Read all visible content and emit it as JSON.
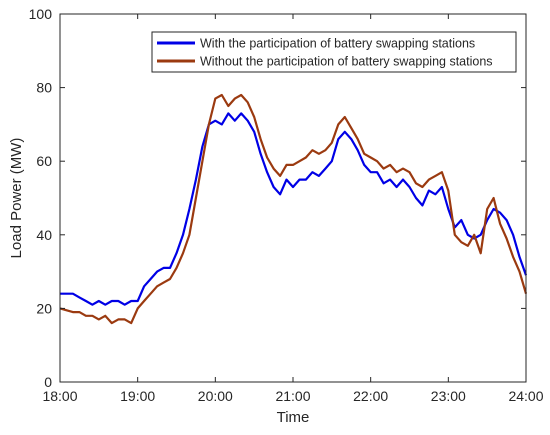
{
  "chart_data": {
    "type": "line",
    "title": "",
    "xlabel": "Time",
    "ylabel": "Load Power (MW)",
    "x_ticks": [
      "18:00",
      "19:00",
      "20:00",
      "21:00",
      "22:00",
      "23:00",
      "24:00"
    ],
    "y_ticks": [
      "0",
      "20",
      "40",
      "60",
      "80",
      "100"
    ],
    "xlim": [
      "18:00",
      "24:00"
    ],
    "ylim": [
      0,
      100
    ],
    "grid": false,
    "legend_position": "top-right",
    "series": [
      {
        "name": "With the participation of battery swapping stations",
        "color": "#0000e6",
        "points": [
          [
            "18:00",
            24
          ],
          [
            "18:10",
            24
          ],
          [
            "18:15",
            23
          ],
          [
            "18:20",
            22
          ],
          [
            "18:25",
            21
          ],
          [
            "18:30",
            22
          ],
          [
            "18:35",
            21
          ],
          [
            "18:40",
            22
          ],
          [
            "18:45",
            22
          ],
          [
            "18:50",
            21
          ],
          [
            "18:55",
            22
          ],
          [
            "19:00",
            22
          ],
          [
            "19:05",
            26
          ],
          [
            "19:10",
            28
          ],
          [
            "19:15",
            30
          ],
          [
            "19:20",
            31
          ],
          [
            "19:25",
            31
          ],
          [
            "19:30",
            35
          ],
          [
            "19:35",
            40
          ],
          [
            "19:40",
            47
          ],
          [
            "19:45",
            55
          ],
          [
            "19:50",
            64
          ],
          [
            "19:55",
            70
          ],
          [
            "20:00",
            71
          ],
          [
            "20:05",
            70
          ],
          [
            "20:10",
            73
          ],
          [
            "20:15",
            71
          ],
          [
            "20:20",
            73
          ],
          [
            "20:25",
            71
          ],
          [
            "20:30",
            68
          ],
          [
            "20:35",
            62
          ],
          [
            "20:40",
            57
          ],
          [
            "20:45",
            53
          ],
          [
            "20:50",
            51
          ],
          [
            "20:55",
            55
          ],
          [
            "21:00",
            53
          ],
          [
            "21:05",
            55
          ],
          [
            "21:10",
            55
          ],
          [
            "21:15",
            57
          ],
          [
            "21:20",
            56
          ],
          [
            "21:25",
            58
          ],
          [
            "21:30",
            60
          ],
          [
            "21:35",
            66
          ],
          [
            "21:40",
            68
          ],
          [
            "21:45",
            66
          ],
          [
            "21:50",
            63
          ],
          [
            "21:55",
            59
          ],
          [
            "22:00",
            57
          ],
          [
            "22:05",
            57
          ],
          [
            "22:10",
            54
          ],
          [
            "22:15",
            55
          ],
          [
            "22:20",
            53
          ],
          [
            "22:25",
            55
          ],
          [
            "22:30",
            53
          ],
          [
            "22:35",
            50
          ],
          [
            "22:40",
            48
          ],
          [
            "22:45",
            52
          ],
          [
            "22:50",
            51
          ],
          [
            "22:55",
            53
          ],
          [
            "23:00",
            47
          ],
          [
            "23:05",
            42
          ],
          [
            "23:10",
            44
          ],
          [
            "23:15",
            40
          ],
          [
            "23:20",
            39
          ],
          [
            "23:25",
            40
          ],
          [
            "23:30",
            44
          ],
          [
            "23:35",
            47
          ],
          [
            "23:40",
            46
          ],
          [
            "23:45",
            44
          ],
          [
            "23:50",
            40
          ],
          [
            "23:55",
            34
          ],
          [
            "24:00",
            29
          ]
        ]
      },
      {
        "name": "Without the participation of battery swapping stations",
        "color": "#9b3a10",
        "points": [
          [
            "18:00",
            20
          ],
          [
            "18:10",
            19
          ],
          [
            "18:15",
            19
          ],
          [
            "18:20",
            18
          ],
          [
            "18:25",
            18
          ],
          [
            "18:30",
            17
          ],
          [
            "18:35",
            18
          ],
          [
            "18:40",
            16
          ],
          [
            "18:45",
            17
          ],
          [
            "18:50",
            17
          ],
          [
            "18:55",
            16
          ],
          [
            "19:00",
            20
          ],
          [
            "19:05",
            22
          ],
          [
            "19:10",
            24
          ],
          [
            "19:15",
            26
          ],
          [
            "19:20",
            27
          ],
          [
            "19:25",
            28
          ],
          [
            "19:30",
            31
          ],
          [
            "19:35",
            35
          ],
          [
            "19:40",
            40
          ],
          [
            "19:45",
            50
          ],
          [
            "19:50",
            60
          ],
          [
            "19:55",
            70
          ],
          [
            "20:00",
            77
          ],
          [
            "20:05",
            78
          ],
          [
            "20:10",
            75
          ],
          [
            "20:15",
            77
          ],
          [
            "20:20",
            78
          ],
          [
            "20:25",
            76
          ],
          [
            "20:30",
            72
          ],
          [
            "20:35",
            66
          ],
          [
            "20:40",
            61
          ],
          [
            "20:45",
            58
          ],
          [
            "20:50",
            56
          ],
          [
            "20:55",
            59
          ],
          [
            "21:00",
            59
          ],
          [
            "21:05",
            60
          ],
          [
            "21:10",
            61
          ],
          [
            "21:15",
            63
          ],
          [
            "21:20",
            62
          ],
          [
            "21:25",
            63
          ],
          [
            "21:30",
            65
          ],
          [
            "21:35",
            70
          ],
          [
            "21:40",
            72
          ],
          [
            "21:45",
            69
          ],
          [
            "21:50",
            66
          ],
          [
            "21:55",
            62
          ],
          [
            "22:00",
            61
          ],
          [
            "22:05",
            60
          ],
          [
            "22:10",
            58
          ],
          [
            "22:15",
            59
          ],
          [
            "22:20",
            57
          ],
          [
            "22:25",
            58
          ],
          [
            "22:30",
            57
          ],
          [
            "22:35",
            54
          ],
          [
            "22:40",
            53
          ],
          [
            "22:45",
            55
          ],
          [
            "22:50",
            56
          ],
          [
            "22:55",
            57
          ],
          [
            "23:00",
            52
          ],
          [
            "23:05",
            40
          ],
          [
            "23:10",
            38
          ],
          [
            "23:15",
            37
          ],
          [
            "23:20",
            40
          ],
          [
            "23:25",
            35
          ],
          [
            "23:30",
            47
          ],
          [
            "23:35",
            50
          ],
          [
            "23:40",
            43
          ],
          [
            "23:45",
            39
          ],
          [
            "23:50",
            34
          ],
          [
            "23:55",
            30
          ],
          [
            "24:00",
            24
          ]
        ]
      }
    ]
  }
}
